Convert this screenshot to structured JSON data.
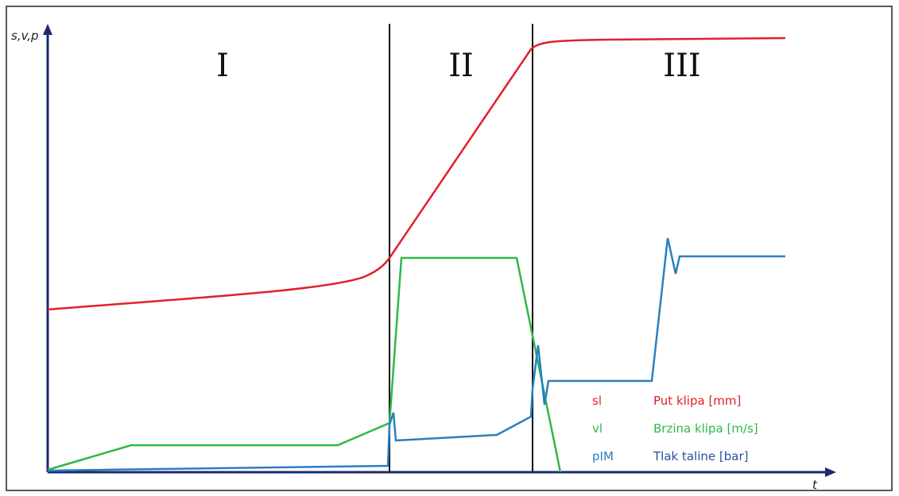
{
  "axes": {
    "y_label": "s,v,p",
    "x_label": "t"
  },
  "phases": [
    "I",
    "II",
    "III"
  ],
  "legend": [
    {
      "symbol": "sl",
      "label": "Put klipa [mm]"
    },
    {
      "symbol": "vl",
      "label": "Brzina klipa [m/s]"
    },
    {
      "symbol": "pIM",
      "label": "Tlak taline [bar]"
    }
  ]
}
